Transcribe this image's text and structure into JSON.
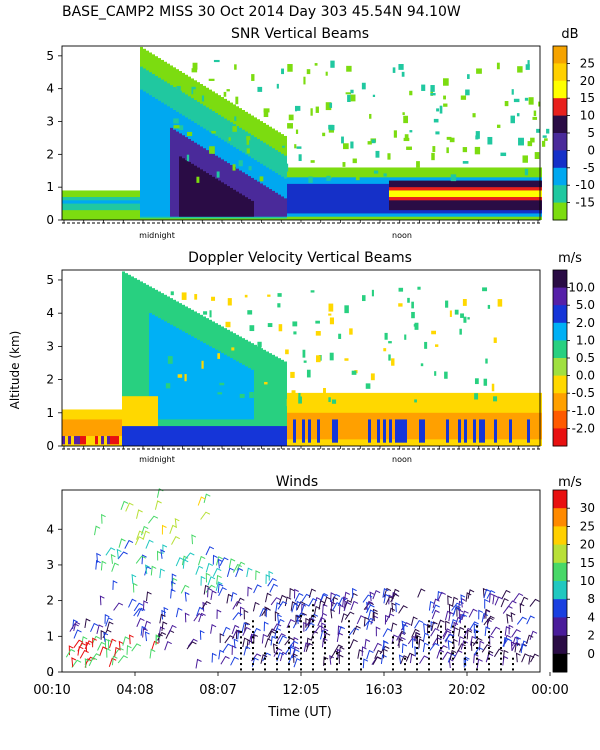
{
  "header": {
    "title": "BASE_CAMP2 MISS  30 Oct 2014 Day 303 45.54N  94.10W"
  },
  "y_label": "Altitude (km)",
  "x_label": "Time (UT)",
  "chart_data": [
    {
      "type": "heatmap",
      "title": "SNR Vertical Beams",
      "units": "dB",
      "ylim": [
        0,
        5.3
      ],
      "y_ticks": [
        "0",
        "1",
        "2",
        "3",
        "4",
        "5"
      ],
      "x_markers": [
        "midnight",
        "noon"
      ],
      "colorbar": {
        "labels": [
          "25",
          "20",
          "15",
          "10",
          "5",
          "0",
          "-5",
          "-10",
          "-15"
        ],
        "colors": [
          "#f5a300",
          "#ffd000",
          "#ffff00",
          "#e8201c",
          "#2a0c45",
          "#4a2a9a",
          "#1530c8",
          "#00a8f0",
          "#20c8a0",
          "#7cdc10"
        ]
      }
    },
    {
      "type": "heatmap",
      "title": "Doppler Velocity Vertical Beams",
      "units": "m/s",
      "ylim": [
        0,
        5.3
      ],
      "y_ticks": [
        "0",
        "1",
        "2",
        "3",
        "4",
        "5"
      ],
      "x_markers": [
        "midnight",
        "noon"
      ],
      "colorbar": {
        "labels": [
          "10.0",
          "5.0",
          "2.0",
          "1.0",
          "0.5",
          "0.0",
          "-0.5",
          "-1.0",
          "-2.0"
        ],
        "colors": [
          "#2a0c45",
          "#5520a8",
          "#1535d8",
          "#00b0f5",
          "#28d080",
          "#a0e040",
          "#ffd800",
          "#ffa000",
          "#ff5a00",
          "#e81010"
        ]
      }
    },
    {
      "type": "wind-barbs",
      "title": "Winds",
      "units": "m/s",
      "ylim": [
        0,
        5.1
      ],
      "y_ticks": [
        "0",
        "1",
        "2",
        "3",
        "4"
      ],
      "x_ticks": [
        "00:10",
        "04:08",
        "08:07",
        "12:05",
        "16:03",
        "20:02",
        "00:00"
      ],
      "colorbar": {
        "labels": [
          "30",
          "25",
          "20",
          "15",
          "10",
          "8",
          "4",
          "2",
          "0"
        ],
        "colors": [
          "#e81010",
          "#ff8a00",
          "#ffd000",
          "#b8e038",
          "#48d868",
          "#20c8c0",
          "#1a40e0",
          "#4a1c9a",
          "#2a0c45",
          "#000000"
        ]
      }
    }
  ]
}
